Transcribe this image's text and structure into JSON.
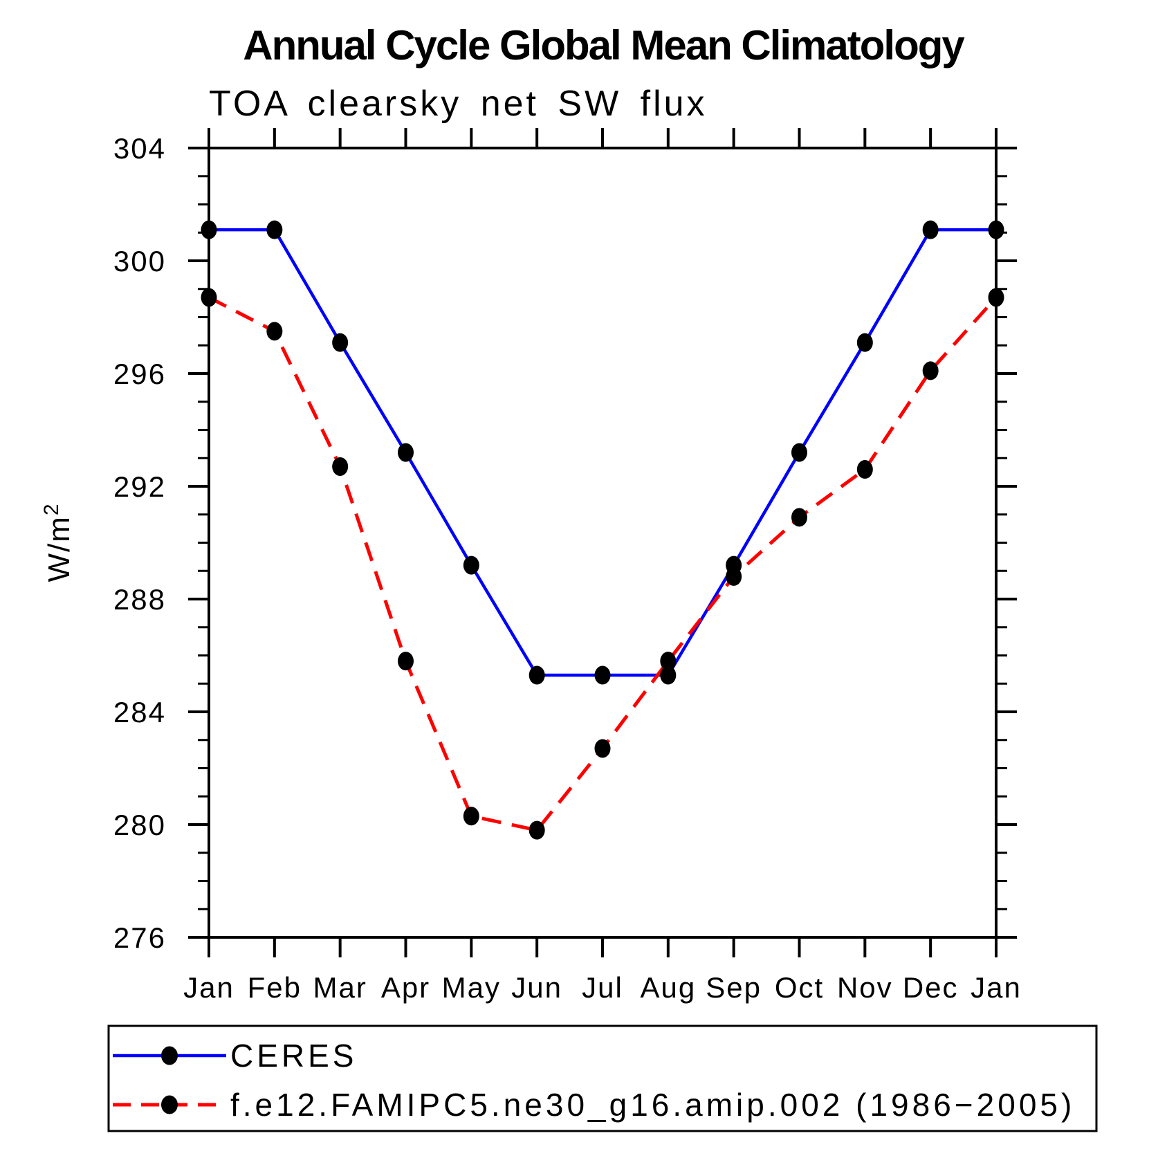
{
  "page": {
    "background": "#ffffff"
  },
  "chart_data": {
    "type": "line",
    "title": "Annual Cycle Global Mean Climatology",
    "subtitle": "TOA clearsky net SW flux",
    "ylabel_base": "W/m",
    "ylabel_exponent": "2",
    "categories": [
      "Jan",
      "Feb",
      "Mar",
      "Apr",
      "May",
      "Jun",
      "Jul",
      "Aug",
      "Sep",
      "Oct",
      "Nov",
      "Dec",
      "Jan"
    ],
    "series": [
      {
        "name": "CERES",
        "line_color": "#0000ff",
        "line_style": "solid",
        "marker": "filled-circle",
        "marker_color": "#000000",
        "values": [
          301.1,
          301.1,
          297.1,
          293.2,
          289.2,
          285.3,
          285.3,
          285.3,
          289.2,
          293.2,
          297.1,
          301.1,
          301.1
        ]
      },
      {
        "name": "f.e12.FAMIPC5.ne30_g16.amip.002 (1986−2005)",
        "line_color": "#ff0000",
        "line_style": "dashed",
        "marker": "filled-circle",
        "marker_color": "#000000",
        "values": [
          298.7,
          297.5,
          292.7,
          285.8,
          280.3,
          279.8,
          282.7,
          285.8,
          288.8,
          290.9,
          292.6,
          296.1,
          298.7
        ]
      }
    ],
    "ylim": [
      276,
      304
    ],
    "y_major_step": 4,
    "y_minor_step": 1,
    "y_tick_labels": [
      "276",
      "280",
      "284",
      "288",
      "292",
      "296",
      "300",
      "304"
    ],
    "grid": false,
    "tick_direction": "outward",
    "legend_position": "bottom-left",
    "axis_color": "#000000"
  }
}
